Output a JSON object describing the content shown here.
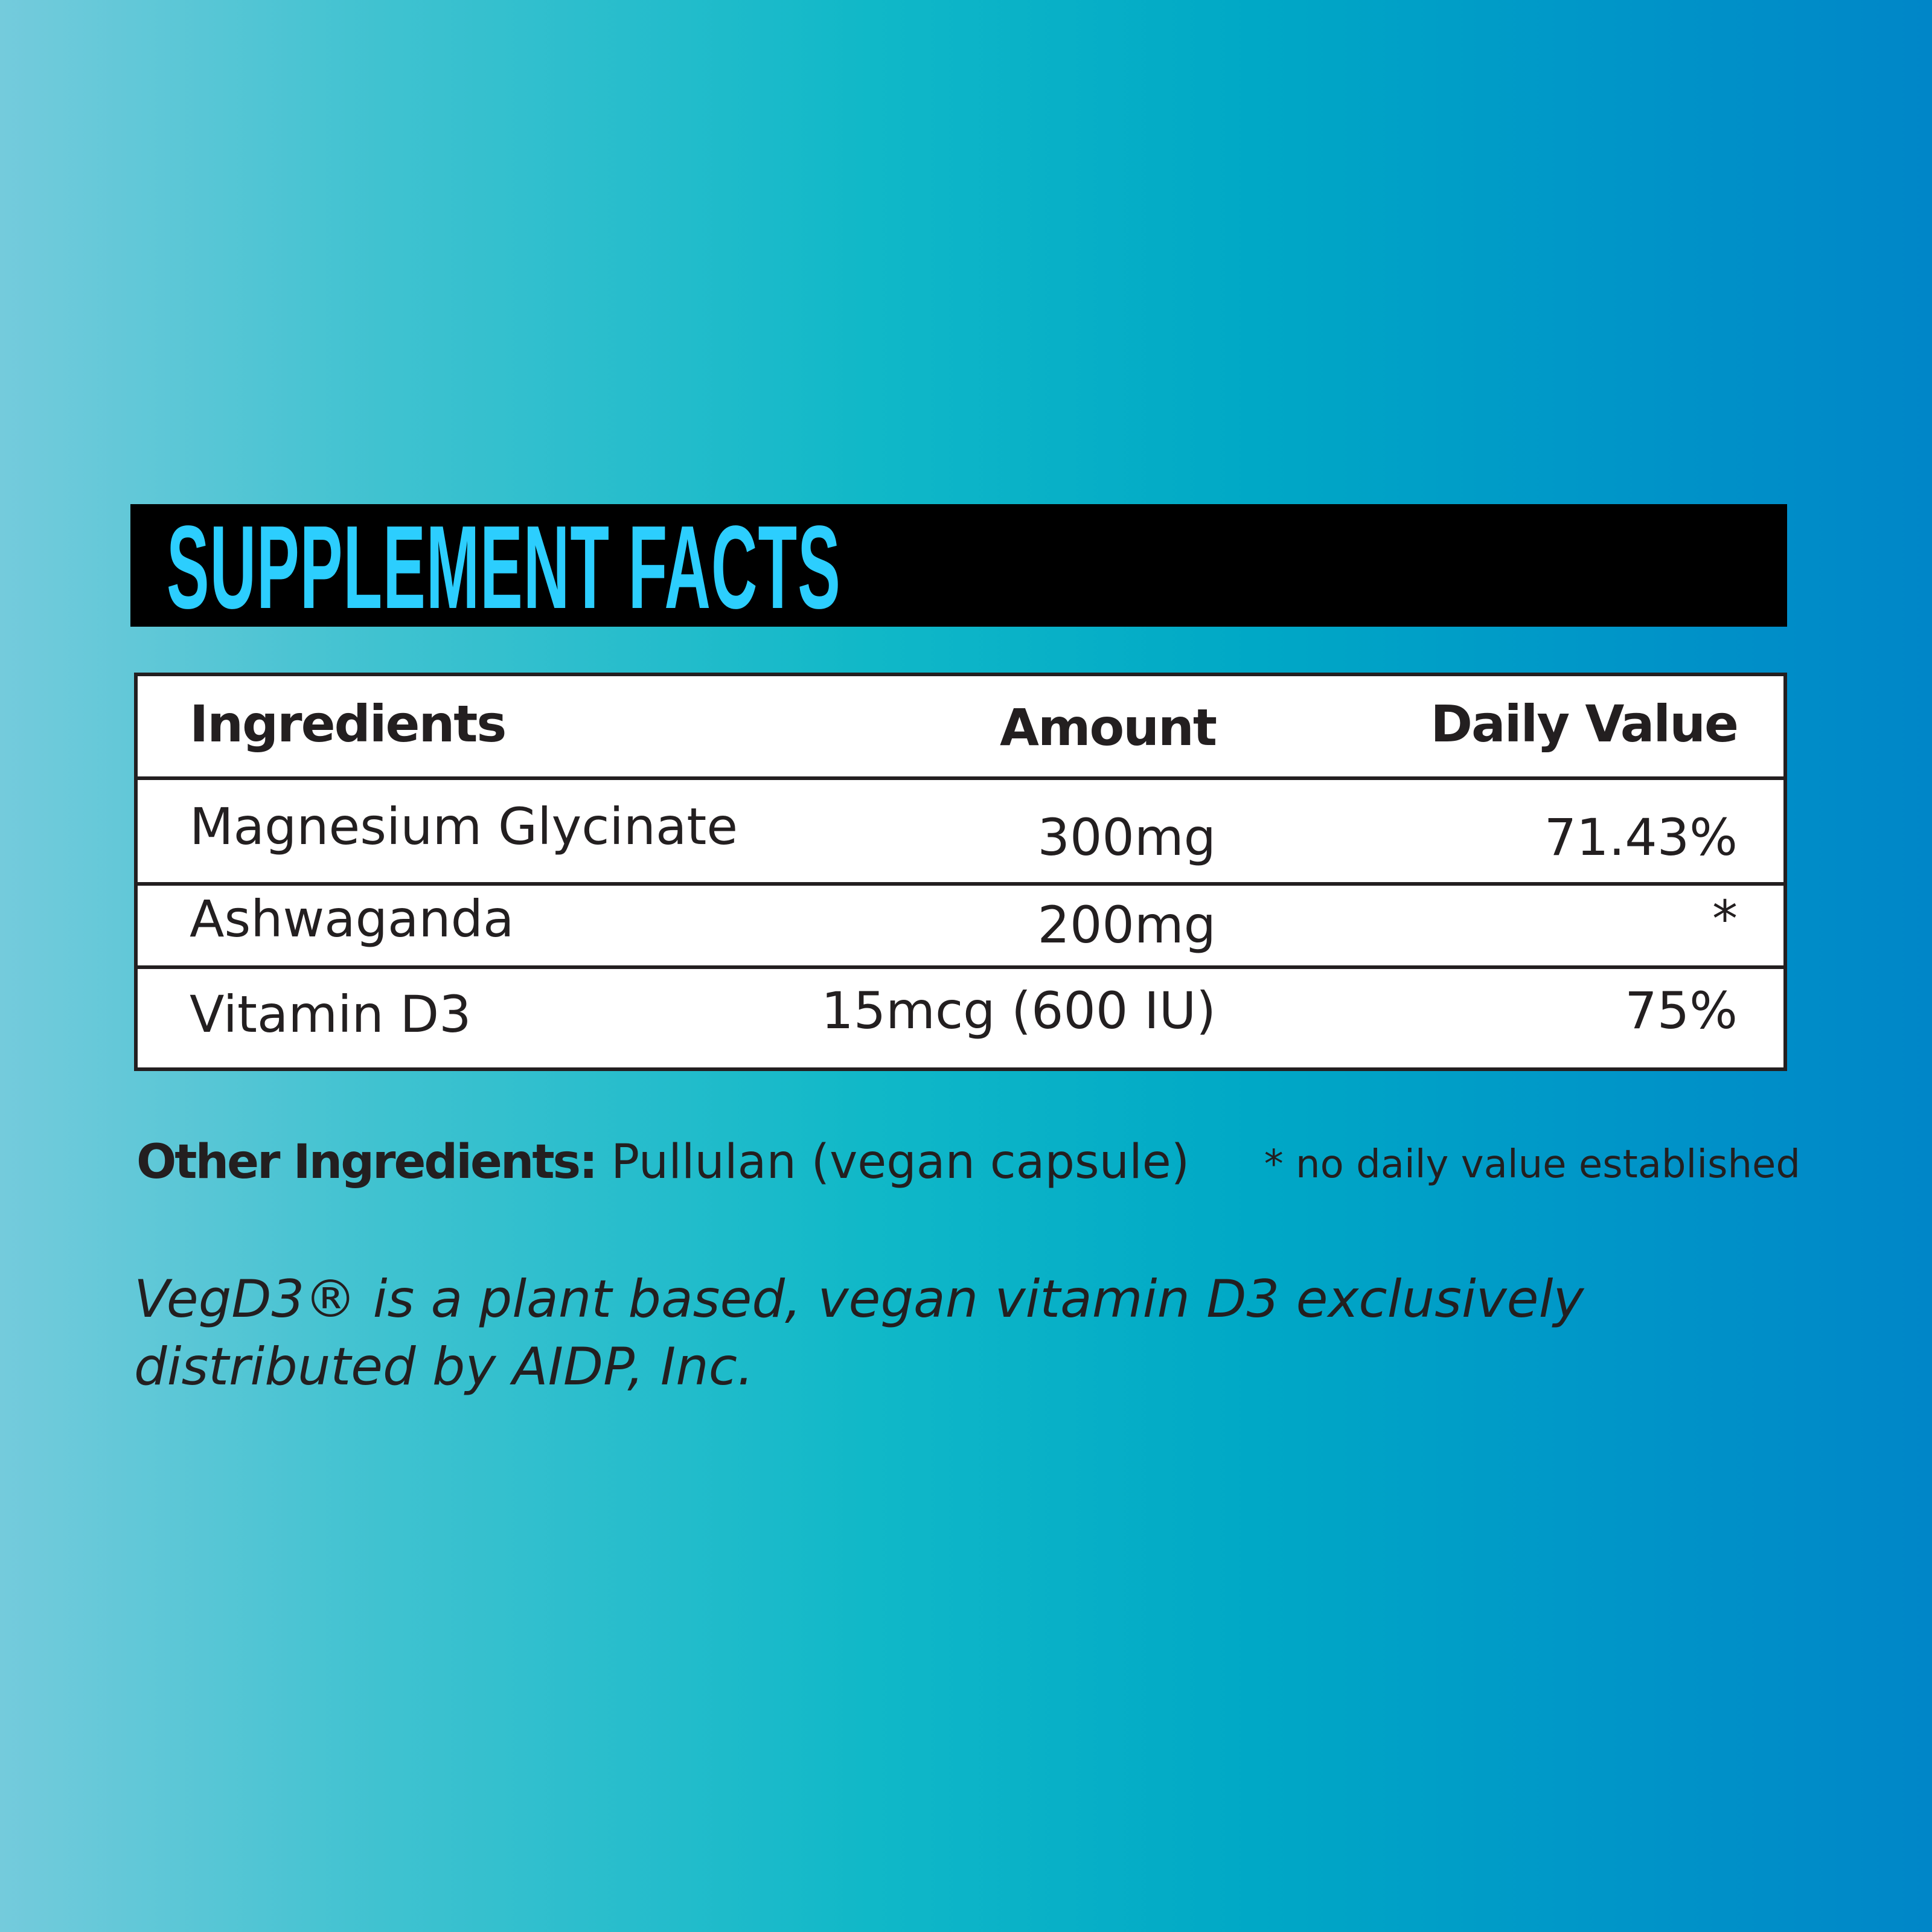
{
  "title": "SUPPLEMENT FACTS",
  "colors": {
    "title": "#2ccefe",
    "title_bar": "#000000",
    "text": "#231f20"
  },
  "table": {
    "headers": {
      "ingredients": "Ingredients",
      "amount": "Amount",
      "daily_value": "Daily Value"
    },
    "rows": [
      {
        "name": "Magnesium Glycinate",
        "amount": "300mg",
        "daily_value": "71.43%"
      },
      {
        "name": "Ashwaganda",
        "amount": "200mg",
        "daily_value": "*"
      },
      {
        "name": "Vitamin D3",
        "amount": "15mcg (600 IU)",
        "daily_value": "75%"
      }
    ]
  },
  "other_ingredients": {
    "label": "Other Ingredients:",
    "value": " Pullulan (vegan capsule)"
  },
  "footnote": "* no daily value established",
  "note": "VegD3® is a plant based, vegan vitamin D3 exclusively distributed by AIDP, Inc."
}
